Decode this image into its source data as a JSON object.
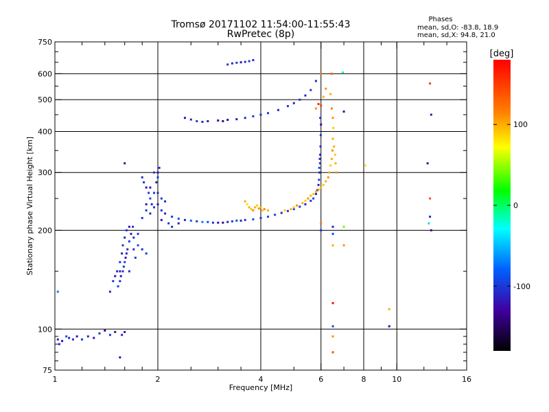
{
  "chart_data": {
    "type": "scatter",
    "title": "Tromsø 20171102 11:54:00-11:55:43",
    "subtitle": "RwPretec (8p)",
    "xlabel": "Frequency [MHz]",
    "ylabel": "Stationary phase Virtual Height [km]",
    "x_scale": "log",
    "y_scale": "log",
    "xlim": [
      1,
      16
    ],
    "ylim": [
      75,
      750
    ],
    "x_ticks": [
      1,
      2,
      4,
      6,
      8,
      10,
      16
    ],
    "y_ticks": [
      75,
      100,
      200,
      300,
      400,
      500,
      600,
      750
    ],
    "x_gridlines": [
      2,
      4,
      6,
      8,
      10
    ],
    "y_gridlines": [
      100,
      200,
      300,
      400,
      500,
      600
    ],
    "grid": true,
    "phase_stats": {
      "heading": "Phases",
      "line_o": "mean, sd,O: -83.8, 18.9",
      "line_x": "mean, sd,X:  94.8, 21.0"
    },
    "colorbar": {
      "label": "[deg]",
      "range": [
        -180,
        180
      ],
      "ticks": [
        100,
        0,
        -100
      ],
      "colormap": "rainbow"
    },
    "series": [
      {
        "component": "O",
        "points": [
          [
            1.02,
            93,
            -110
          ],
          [
            1.03,
            90,
            -100
          ],
          [
            1.05,
            92,
            -120
          ],
          [
            1.08,
            95,
            -90
          ],
          [
            1.1,
            94,
            -110
          ],
          [
            1.13,
            93,
            -100
          ],
          [
            1.16,
            95,
            -120
          ],
          [
            1.2,
            93,
            -100
          ],
          [
            1.25,
            95,
            -110
          ],
          [
            1.3,
            94,
            -120
          ],
          [
            1.35,
            97,
            -100
          ],
          [
            1.4,
            99,
            -140
          ],
          [
            1.45,
            96,
            -100
          ],
          [
            1.5,
            98,
            -120
          ],
          [
            1.55,
            82,
            -120
          ],
          [
            1.57,
            96,
            -110
          ],
          [
            1.6,
            98,
            -120
          ],
          [
            1.02,
            130,
            -70
          ],
          [
            1.45,
            130,
            -110
          ],
          [
            1.48,
            140,
            -100
          ],
          [
            1.5,
            145,
            -120
          ],
          [
            1.52,
            150,
            -110
          ],
          [
            1.55,
            160,
            -100
          ],
          [
            1.57,
            170,
            -120
          ],
          [
            1.58,
            180,
            -100
          ],
          [
            1.6,
            190,
            -110
          ],
          [
            1.62,
            200,
            -100
          ],
          [
            1.65,
            205,
            -120
          ],
          [
            1.55,
            140,
            -100
          ],
          [
            1.58,
            150,
            -110
          ],
          [
            1.6,
            160,
            -90
          ],
          [
            1.62,
            170,
            -110
          ],
          [
            1.53,
            135,
            -100
          ],
          [
            1.56,
            145,
            -120
          ],
          [
            1.59,
            155,
            -100
          ],
          [
            1.61,
            165,
            -120
          ],
          [
            1.63,
            175,
            -110
          ],
          [
            1.65,
            185,
            -100
          ],
          [
            1.67,
            195,
            -120
          ],
          [
            1.69,
            205,
            -100
          ],
          [
            1.7,
            175,
            -110
          ],
          [
            1.72,
            165,
            -100
          ],
          [
            1.75,
            180,
            -90
          ],
          [
            1.8,
            175,
            -110
          ],
          [
            1.85,
            170,
            -100
          ],
          [
            1.65,
            150,
            -110
          ],
          [
            1.6,
            320,
            -130
          ],
          [
            1.8,
            290,
            -110
          ],
          [
            1.82,
            280,
            -100
          ],
          [
            1.85,
            270,
            -120
          ],
          [
            1.88,
            260,
            -100
          ],
          [
            1.9,
            250,
            -90
          ],
          [
            1.92,
            240,
            -110
          ],
          [
            1.95,
            235,
            -100
          ],
          [
            2.0,
            240,
            -120
          ],
          [
            2.05,
            250,
            -100
          ],
          [
            2.1,
            245,
            -110
          ],
          [
            2.0,
            290,
            -100
          ],
          [
            2.0,
            300,
            -120
          ],
          [
            2.02,
            310,
            -110
          ],
          [
            1.95,
            300,
            -100
          ],
          [
            1.98,
            280,
            -110
          ],
          [
            1.9,
            270,
            -120
          ],
          [
            1.95,
            260,
            -100
          ],
          [
            2.0,
            260,
            -110
          ],
          [
            1.85,
            230,
            -100
          ],
          [
            1.9,
            225,
            -110
          ],
          [
            1.8,
            218,
            -100
          ],
          [
            1.85,
            240,
            -120
          ],
          [
            2.05,
            230,
            -100
          ],
          [
            2.1,
            225,
            -110
          ],
          [
            2.2,
            220,
            -100
          ],
          [
            2.3,
            217,
            -90
          ],
          [
            2.4,
            215,
            -110
          ],
          [
            2.5,
            214,
            -80
          ],
          [
            2.6,
            213,
            -100
          ],
          [
            2.7,
            212,
            -70
          ],
          [
            2.8,
            212,
            -90
          ],
          [
            2.9,
            211,
            -100
          ],
          [
            3.0,
            211,
            -120
          ],
          [
            3.1,
            211,
            -130
          ],
          [
            3.2,
            212,
            -110
          ],
          [
            3.3,
            213,
            -100
          ],
          [
            3.4,
            214,
            -90
          ],
          [
            3.5,
            214,
            -110
          ],
          [
            3.6,
            215,
            -100
          ],
          [
            3.8,
            216,
            -90
          ],
          [
            4.0,
            218,
            -100
          ],
          [
            4.2,
            220,
            -90
          ],
          [
            4.4,
            223,
            -100
          ],
          [
            4.6,
            226,
            -110
          ],
          [
            4.8,
            229,
            -100
          ],
          [
            5.0,
            232,
            -90
          ],
          [
            5.2,
            236,
            -100
          ],
          [
            5.4,
            240,
            -110
          ],
          [
            5.6,
            246,
            -100
          ],
          [
            5.7,
            250,
            -90
          ],
          [
            5.8,
            258,
            -110
          ],
          [
            5.85,
            265,
            -100
          ],
          [
            5.9,
            275,
            -120
          ],
          [
            5.92,
            285,
            -100
          ],
          [
            5.94,
            300,
            -110
          ],
          [
            5.96,
            320,
            -100
          ],
          [
            5.97,
            340,
            -120
          ],
          [
            5.98,
            360,
            -110
          ],
          [
            5.99,
            390,
            -100
          ],
          [
            6.0,
            420,
            -130
          ],
          [
            5.97,
            440,
            -110
          ],
          [
            5.95,
            330,
            -100
          ],
          [
            5.93,
            310,
            -90
          ],
          [
            2.4,
            440,
            -120
          ],
          [
            2.5,
            435,
            -110
          ],
          [
            2.6,
            430,
            -100
          ],
          [
            2.7,
            428,
            -110
          ],
          [
            2.8,
            430,
            -120
          ],
          [
            3.0,
            432,
            -130
          ],
          [
            3.2,
            434,
            -140
          ],
          [
            3.4,
            436,
            -120
          ],
          [
            3.6,
            440,
            -110
          ],
          [
            3.8,
            445,
            -100
          ],
          [
            4.0,
            450,
            -110
          ],
          [
            4.2,
            455,
            -100
          ],
          [
            4.5,
            465,
            -110
          ],
          [
            4.8,
            478,
            -100
          ],
          [
            5.0,
            488,
            -110
          ],
          [
            5.2,
            500,
            -100
          ],
          [
            5.4,
            515,
            -110
          ],
          [
            5.6,
            535,
            -100
          ],
          [
            5.8,
            570,
            -110
          ],
          [
            3.1,
            430,
            -140
          ],
          [
            3.2,
            640,
            -100
          ],
          [
            3.3,
            645,
            -110
          ],
          [
            3.4,
            648,
            -100
          ],
          [
            3.5,
            650,
            -120
          ],
          [
            3.6,
            652,
            -110
          ],
          [
            3.7,
            655,
            -100
          ],
          [
            3.8,
            660,
            -110
          ],
          [
            2.3,
            210,
            -110
          ],
          [
            2.2,
            205,
            -100
          ],
          [
            1.7,
            190,
            -110
          ],
          [
            1.75,
            195,
            -100
          ],
          [
            2.05,
            215,
            -120
          ],
          [
            2.15,
            210,
            -100
          ],
          [
            1.55,
            150,
            -110
          ]
        ]
      },
      {
        "component": "X",
        "points": [
          [
            3.6,
            245,
            100
          ],
          [
            3.65,
            240,
            80
          ],
          [
            3.7,
            235,
            100
          ],
          [
            3.75,
            232,
            90
          ],
          [
            3.8,
            230,
            110
          ],
          [
            3.85,
            235,
            100
          ],
          [
            3.9,
            238,
            90
          ],
          [
            3.95,
            233,
            110
          ],
          [
            4.0,
            235,
            100
          ],
          [
            4.05,
            230,
            90
          ],
          [
            4.1,
            232,
            110
          ],
          [
            4.2,
            230,
            100
          ],
          [
            4.7,
            230,
            90
          ],
          [
            4.9,
            232,
            100
          ],
          [
            5.0,
            235,
            90
          ],
          [
            5.1,
            238,
            110
          ],
          [
            5.3,
            242,
            100
          ],
          [
            5.4,
            246,
            90
          ],
          [
            5.5,
            250,
            110
          ],
          [
            5.6,
            255,
            100
          ],
          [
            5.7,
            258,
            90
          ],
          [
            5.8,
            262,
            100
          ],
          [
            5.9,
            266,
            110
          ],
          [
            6.0,
            270,
            100
          ],
          [
            6.1,
            275,
            90
          ],
          [
            6.2,
            282,
            100
          ],
          [
            6.3,
            290,
            110
          ],
          [
            6.35,
            300,
            100
          ],
          [
            6.4,
            315,
            90
          ],
          [
            6.45,
            330,
            100
          ],
          [
            6.48,
            350,
            110
          ],
          [
            6.5,
            380,
            100
          ],
          [
            6.52,
            410,
            90
          ],
          [
            6.5,
            440,
            110
          ],
          [
            6.55,
            360,
            100
          ],
          [
            6.6,
            340,
            90
          ],
          [
            6.62,
            320,
            100
          ],
          [
            6.65,
            300,
            110
          ],
          [
            6.45,
            470,
            120
          ],
          [
            6.4,
            520,
            100
          ],
          [
            6.45,
            600,
            130
          ],
          [
            6.0,
            600,
            120
          ],
          [
            6.1,
            510,
            100
          ],
          [
            6.2,
            540,
            110
          ],
          [
            6.0,
            480,
            150
          ],
          [
            5.9,
            485,
            160
          ],
          [
            5.8,
            470,
            110
          ],
          [
            6.5,
            85,
            140
          ],
          [
            6.5,
            95,
            110
          ],
          [
            6.5,
            120,
            170
          ],
          [
            6.5,
            102,
            -90
          ],
          [
            7.0,
            180,
            110
          ],
          [
            6.5,
            180,
            100
          ],
          [
            8.1,
            315,
            80
          ],
          [
            9.5,
            115,
            100
          ],
          [
            12.5,
            560,
            150
          ],
          [
            12.5,
            250,
            140
          ],
          [
            12.5,
            220,
            -110
          ],
          [
            12.6,
            450,
            -120
          ],
          [
            12.6,
            200,
            -130
          ],
          [
            12.3,
            320,
            -130
          ],
          [
            12.4,
            210,
            -40
          ],
          [
            9.5,
            102,
            -130
          ],
          [
            6.5,
            205,
            -110
          ],
          [
            6.5,
            195,
            -90
          ],
          [
            6.95,
            605,
            -10
          ],
          [
            7.0,
            460,
            -130
          ],
          [
            7.0,
            205,
            40
          ],
          [
            6.0,
            200,
            -100
          ],
          [
            6.0,
            210,
            120
          ]
        ]
      }
    ]
  }
}
